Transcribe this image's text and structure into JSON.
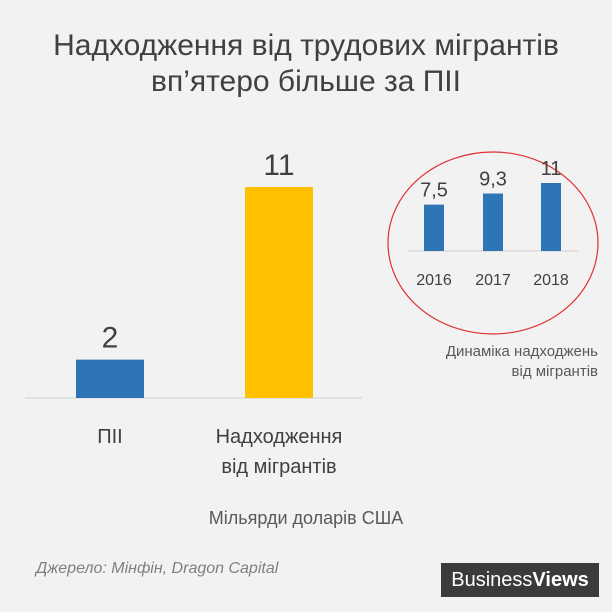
{
  "title": {
    "line1": "Надходження від трудових мігрантів",
    "line2": "вп’ятеро більше за ПІІ"
  },
  "chart_data": [
    {
      "type": "bar",
      "categories": [
        "ПІІ",
        "Надходження від мігрантів"
      ],
      "category_lines": [
        [
          "ПІІ"
        ],
        [
          "Надходження",
          "від мігрантів"
        ]
      ],
      "values": [
        2,
        11
      ],
      "value_labels": [
        "2",
        "11"
      ],
      "colors": [
        "#2e75b6",
        "#ffc000"
      ],
      "ylim": [
        0,
        11
      ],
      "unit_label": "Мільярди доларів США",
      "grid": false
    },
    {
      "type": "bar",
      "categories": [
        "2016",
        "2017",
        "2018"
      ],
      "values": [
        7.5,
        9.3,
        11
      ],
      "value_labels": [
        "7,5",
        "9,3",
        "11"
      ],
      "color": "#2e75b6",
      "ylim": [
        0,
        11
      ],
      "caption_lines": [
        "Динаміка надходжень",
        "від мігрантів"
      ],
      "grid": false
    }
  ],
  "source": "Джерело: Мінфін, Dragon Capital",
  "logo": {
    "part1": "Business",
    "part2": "Views"
  },
  "colors": {
    "blue": "#2e75b6",
    "gold": "#ffc000",
    "circle": "#e03030"
  }
}
